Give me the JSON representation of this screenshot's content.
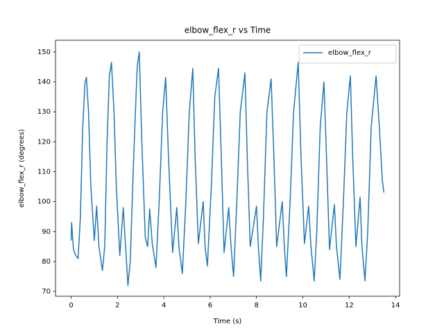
{
  "chart_data": {
    "type": "line",
    "title": "elbow_flex_r vs Time",
    "x_label": "Time (s)",
    "y_label": "elbow_flex_r (degrees)",
    "x": [
      0,
      0.02,
      0.1,
      0.2,
      0.3,
      0.4,
      0.5,
      0.6,
      0.66,
      0.75,
      0.85,
      1.0,
      1.1,
      1.2,
      1.35,
      1.45,
      1.55,
      1.65,
      1.74,
      1.85,
      1.95,
      2.1,
      2.25,
      2.35,
      2.45,
      2.55,
      2.7,
      2.85,
      2.94,
      3.05,
      3.2,
      3.3,
      3.39,
      3.5,
      3.66,
      3.8,
      3.95,
      4.08,
      4.2,
      4.38,
      4.56,
      4.65,
      4.8,
      4.95,
      5.1,
      5.25,
      5.35,
      5.49,
      5.7,
      5.78,
      5.88,
      6.05,
      6.2,
      6.36,
      6.48,
      6.6,
      6.8,
      6.9,
      7.01,
      7.15,
      7.3,
      7.5,
      7.6,
      7.73,
      8.0,
      8.08,
      8.18,
      8.3,
      8.45,
      8.63,
      8.75,
      8.87,
      9.11,
      9.2,
      9.29,
      9.45,
      9.6,
      9.8,
      9.92,
      10.07,
      10.25,
      10.35,
      10.49,
      10.6,
      10.75,
      10.91,
      11.02,
      11.15,
      11.36,
      11.45,
      11.6,
      11.75,
      11.9,
      12.05,
      12.15,
      12.29,
      12.47,
      12.55,
      12.68,
      12.8,
      12.95,
      13.16,
      13.3,
      13.43,
      13.5
    ],
    "series": [
      {
        "name": "elbow_flex_r",
        "color": "#1f77b4",
        "values": [
          87,
          93,
          84,
          82,
          81,
          95,
          125,
          140,
          141.5,
          130,
          105,
          87,
          98.5,
          85,
          77,
          85,
          120,
          142,
          146.5,
          130,
          105,
          82,
          98,
          85,
          72,
          80,
          115,
          145,
          150,
          120,
          88,
          85,
          97.5,
          86,
          78,
          100,
          130,
          141.5,
          115,
          83,
          98,
          85,
          76,
          100,
          130,
          144.5,
          115,
          86,
          100,
          85,
          78.5,
          105,
          135,
          144.5,
          115,
          83,
          98,
          85,
          75,
          100,
          130,
          143,
          115,
          85,
          98.5,
          85,
          73.5,
          95,
          130,
          141,
          115,
          85,
          100,
          85,
          75,
          100,
          130,
          146.5,
          115,
          86,
          98.5,
          85,
          73.5,
          90,
          125,
          140,
          115,
          84,
          99,
          85,
          74,
          100,
          130,
          142,
          115,
          85,
          101.5,
          85,
          73.5,
          90,
          125,
          142,
          125,
          107,
          103
        ]
      }
    ],
    "xlim": [
      -0.675,
      14.175
    ],
    "ylim": [
      68.4,
      153.9
    ],
    "xticks": [
      0,
      2,
      4,
      6,
      8,
      10,
      12,
      14
    ],
    "yticks": [
      70,
      80,
      90,
      100,
      110,
      120,
      130,
      140,
      150
    ],
    "legend": "upper right"
  }
}
